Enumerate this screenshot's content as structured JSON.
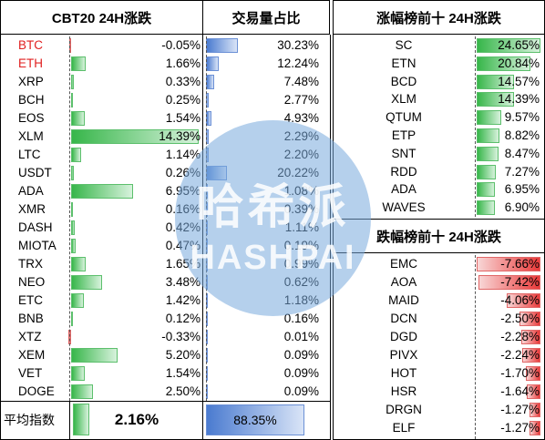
{
  "left_table": {
    "header_change": "CBT20 24H涨跌",
    "header_share": "交易量占比",
    "rows": [
      {
        "name": "BTC",
        "change": "-0.05%",
        "change_num": -0.05,
        "share": "30.23%",
        "share_num": 30.23,
        "color": "#e02020"
      },
      {
        "name": "ETH",
        "change": "1.66%",
        "change_num": 1.66,
        "share": "12.24%",
        "share_num": 12.24,
        "color": "#e02020"
      },
      {
        "name": "XRP",
        "change": "0.33%",
        "change_num": 0.33,
        "share": "7.48%",
        "share_num": 7.48,
        "color": "#000000"
      },
      {
        "name": "BCH",
        "change": "0.25%",
        "change_num": 0.25,
        "share": "2.77%",
        "share_num": 2.77,
        "color": "#000000"
      },
      {
        "name": "EOS",
        "change": "1.54%",
        "change_num": 1.54,
        "share": "4.93%",
        "share_num": 4.93,
        "color": "#000000"
      },
      {
        "name": "XLM",
        "change": "14.39%",
        "change_num": 14.39,
        "share": "2.29%",
        "share_num": 2.29,
        "color": "#000000"
      },
      {
        "name": "LTC",
        "change": "1.14%",
        "change_num": 1.14,
        "share": "2.20%",
        "share_num": 2.2,
        "color": "#000000"
      },
      {
        "name": "USDT",
        "change": "0.26%",
        "change_num": 0.26,
        "share": "20.22%",
        "share_num": 20.22,
        "color": "#000000"
      },
      {
        "name": "ADA",
        "change": "6.95%",
        "change_num": 6.95,
        "share": "1.08%",
        "share_num": 1.08,
        "color": "#000000"
      },
      {
        "name": "XMR",
        "change": "0.16%",
        "change_num": 0.16,
        "share": "0.39%",
        "share_num": 0.39,
        "color": "#000000"
      },
      {
        "name": "DASH",
        "change": "0.42%",
        "change_num": 0.42,
        "share": "1.11%",
        "share_num": 1.11,
        "color": "#000000"
      },
      {
        "name": "MIOTA",
        "change": "0.47%",
        "change_num": 0.47,
        "share": "0.19%",
        "share_num": 0.19,
        "color": "#000000"
      },
      {
        "name": "TRX",
        "change": "1.65%",
        "change_num": 1.65,
        "share": "0.99%",
        "share_num": 0.99,
        "color": "#000000"
      },
      {
        "name": "NEO",
        "change": "3.48%",
        "change_num": 3.48,
        "share": "0.62%",
        "share_num": 0.62,
        "color": "#000000"
      },
      {
        "name": "ETC",
        "change": "1.42%",
        "change_num": 1.42,
        "share": "1.18%",
        "share_num": 1.18,
        "color": "#000000"
      },
      {
        "name": "BNB",
        "change": "0.12%",
        "change_num": 0.12,
        "share": "0.16%",
        "share_num": 0.16,
        "color": "#000000"
      },
      {
        "name": "XTZ",
        "change": "-0.33%",
        "change_num": -0.33,
        "share": "0.01%",
        "share_num": 0.01,
        "color": "#000000"
      },
      {
        "name": "XEM",
        "change": "5.20%",
        "change_num": 5.2,
        "share": "0.09%",
        "share_num": 0.09,
        "color": "#000000"
      },
      {
        "name": "VET",
        "change": "1.54%",
        "change_num": 1.54,
        "share": "0.09%",
        "share_num": 0.09,
        "color": "#000000"
      },
      {
        "name": "DOGE",
        "change": "2.50%",
        "change_num": 2.5,
        "share": "0.09%",
        "share_num": 0.09,
        "color": "#000000"
      }
    ],
    "footer_label": "平均指数",
    "footer_value": "2.16%",
    "footer_value_num": 2.16,
    "footer_share": "88.35%",
    "footer_share_num": 88.35
  },
  "gainers": {
    "header": "涨幅榜前十 24H涨跌",
    "rows": [
      {
        "name": "SC",
        "change": "24.65%",
        "change_num": 24.65
      },
      {
        "name": "ETN",
        "change": "20.84%",
        "change_num": 20.84
      },
      {
        "name": "BCD",
        "change": "14.57%",
        "change_num": 14.57
      },
      {
        "name": "XLM",
        "change": "14.39%",
        "change_num": 14.39
      },
      {
        "name": "QTUM",
        "change": "9.57%",
        "change_num": 9.57
      },
      {
        "name": "ETP",
        "change": "8.82%",
        "change_num": 8.82
      },
      {
        "name": "SNT",
        "change": "8.47%",
        "change_num": 8.47
      },
      {
        "name": "RDD",
        "change": "7.27%",
        "change_num": 7.27
      },
      {
        "name": "ADA",
        "change": "6.95%",
        "change_num": 6.95
      },
      {
        "name": "WAVES",
        "change": "6.90%",
        "change_num": 6.9
      }
    ]
  },
  "losers": {
    "header": "跌幅榜前十 24H涨跌",
    "rows": [
      {
        "name": "EMC",
        "change": "-7.66%",
        "change_num": -7.66
      },
      {
        "name": "AOA",
        "change": "-7.42%",
        "change_num": -7.42
      },
      {
        "name": "MAID",
        "change": "-4.06%",
        "change_num": -4.06
      },
      {
        "name": "DCN",
        "change": "-2.50%",
        "change_num": -2.5
      },
      {
        "name": "DGD",
        "change": "-2.28%",
        "change_num": -2.28
      },
      {
        "name": "PIVX",
        "change": "-2.24%",
        "change_num": -2.24
      },
      {
        "name": "HOT",
        "change": "-1.70%",
        "change_num": -1.7
      },
      {
        "name": "HSR",
        "change": "-1.64%",
        "change_num": -1.64
      },
      {
        "name": "DRGN",
        "change": "-1.27%",
        "change_num": -1.27
      },
      {
        "name": "ELF",
        "change": "-1.27%",
        "change_num": -1.27
      }
    ]
  },
  "watermark": {
    "cn": "哈希派",
    "en": "HASHPAI"
  },
  "colors": {
    "green": "#37b64a",
    "blue": "#4a7bd0",
    "red": "#ea3a3a",
    "accent_name": "#e02020"
  }
}
